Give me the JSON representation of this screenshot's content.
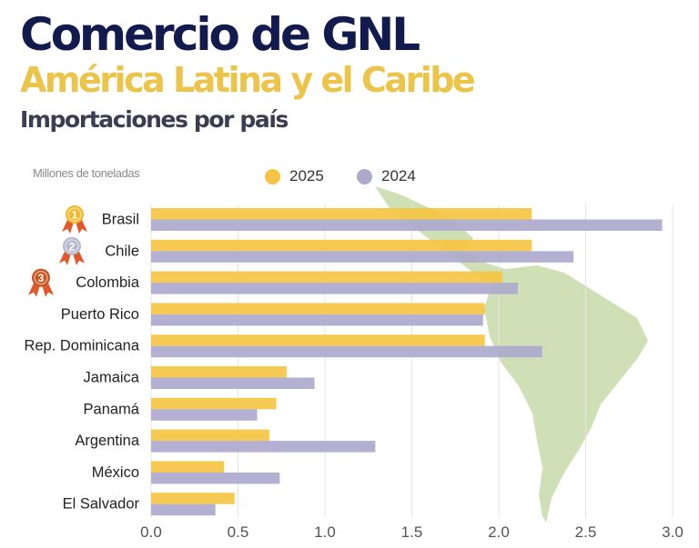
{
  "header": {
    "title": "Comercio de GNL",
    "subtitle": "América Latina y el Caribe",
    "section": "Importaciones por país"
  },
  "colors": {
    "title": "#131a4e",
    "subtitle": "#ecc44a",
    "section": "#3b3d52",
    "series_2025": "#f5c443",
    "series_2024": "#aca9cd",
    "map": "#cfe0b6",
    "gold_medal": "#f2b92e",
    "silver_medal": "#b7b9cc",
    "bronze_medal": "#c9551f",
    "ribbon": "#e0592a"
  },
  "medals": [
    {
      "rank": "1",
      "icon": "gold-medal-icon"
    },
    {
      "rank": "2",
      "icon": "silver-medal-icon"
    },
    {
      "rank": "3",
      "icon": "bronze-medal-icon"
    }
  ],
  "map_icon": "latin-america-map-icon",
  "chart_data": {
    "type": "bar",
    "orientation": "horizontal",
    "unit_label": "Millones de toneladas",
    "categories": [
      "Brasil",
      "Chile",
      "Colombia",
      "Puerto Rico",
      "Rep. Dominicana",
      "Jamaica",
      "Panamá",
      "Argentina",
      "México",
      "El Salvador"
    ],
    "series": [
      {
        "name": "2025",
        "values": [
          2.19,
          2.19,
          2.02,
          1.92,
          1.92,
          0.78,
          0.72,
          0.68,
          0.42,
          0.48
        ]
      },
      {
        "name": "2024",
        "values": [
          2.94,
          2.43,
          2.11,
          1.91,
          2.25,
          0.94,
          0.61,
          1.29,
          0.74,
          0.37
        ]
      }
    ],
    "xlim": [
      0,
      3.0
    ],
    "xticks": [
      "0.0",
      "0.5",
      "1.0",
      "1.5",
      "2.0",
      "2.5",
      "3.0"
    ],
    "grid": "vertical",
    "legend_position": "top"
  }
}
